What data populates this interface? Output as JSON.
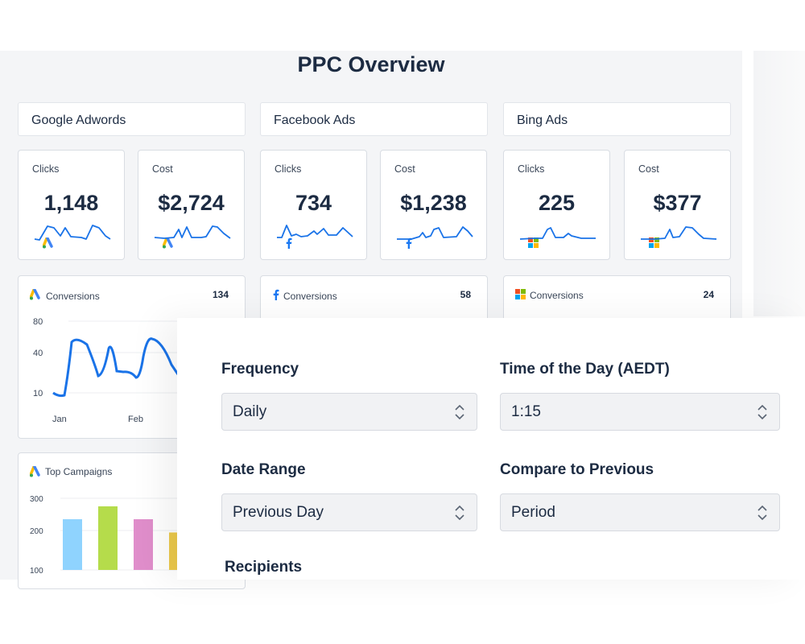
{
  "title": "PPC Overview",
  "sections": [
    "Google Adwords",
    "Facebook Ads",
    "Bing Ads"
  ],
  "kpis": [
    {
      "icon": "google-ads-icon",
      "label": "Clicks",
      "value": "1,148"
    },
    {
      "icon": "google-ads-icon",
      "label": "Cost",
      "value": "$2,724"
    },
    {
      "icon": "facebook-icon",
      "label": "Clicks",
      "value": "734"
    },
    {
      "icon": "facebook-icon",
      "label": "Cost",
      "value": "$1,238"
    },
    {
      "icon": "microsoft-icon",
      "label": "Clicks",
      "value": "225"
    },
    {
      "icon": "microsoft-icon",
      "label": "Cost",
      "value": "$377"
    }
  ],
  "conversions": [
    {
      "icon": "google-ads-icon",
      "label": "Conversions",
      "value": "134"
    },
    {
      "icon": "facebook-icon",
      "label": "Conversions",
      "value": "58"
    },
    {
      "icon": "microsoft-icon",
      "label": "Conversions",
      "value": "24"
    }
  ],
  "conv_chart": {
    "y_ticks": [
      "80",
      "40",
      "10"
    ],
    "x_ticks": [
      "Jan",
      "Feb"
    ],
    "color": "#1a73e8"
  },
  "top_campaigns": {
    "label": "Top Campaigns",
    "y_ticks": [
      "300",
      "200",
      "100"
    ],
    "values": [
      235,
      275,
      235,
      195
    ],
    "colors": [
      "#8fd3fe",
      "#b5dc4b",
      "#e08ecb",
      "#ecc94b"
    ]
  },
  "form": {
    "frequency": {
      "label": "Frequency",
      "value": "Daily"
    },
    "time": {
      "label": "Time of the Day (AEDT)",
      "value": "1:15"
    },
    "date_range": {
      "label": "Date Range",
      "value": "Previous Day"
    },
    "compare": {
      "label": "Compare to Previous",
      "value": "Period"
    },
    "recipients": {
      "label": "Recipients"
    }
  }
}
